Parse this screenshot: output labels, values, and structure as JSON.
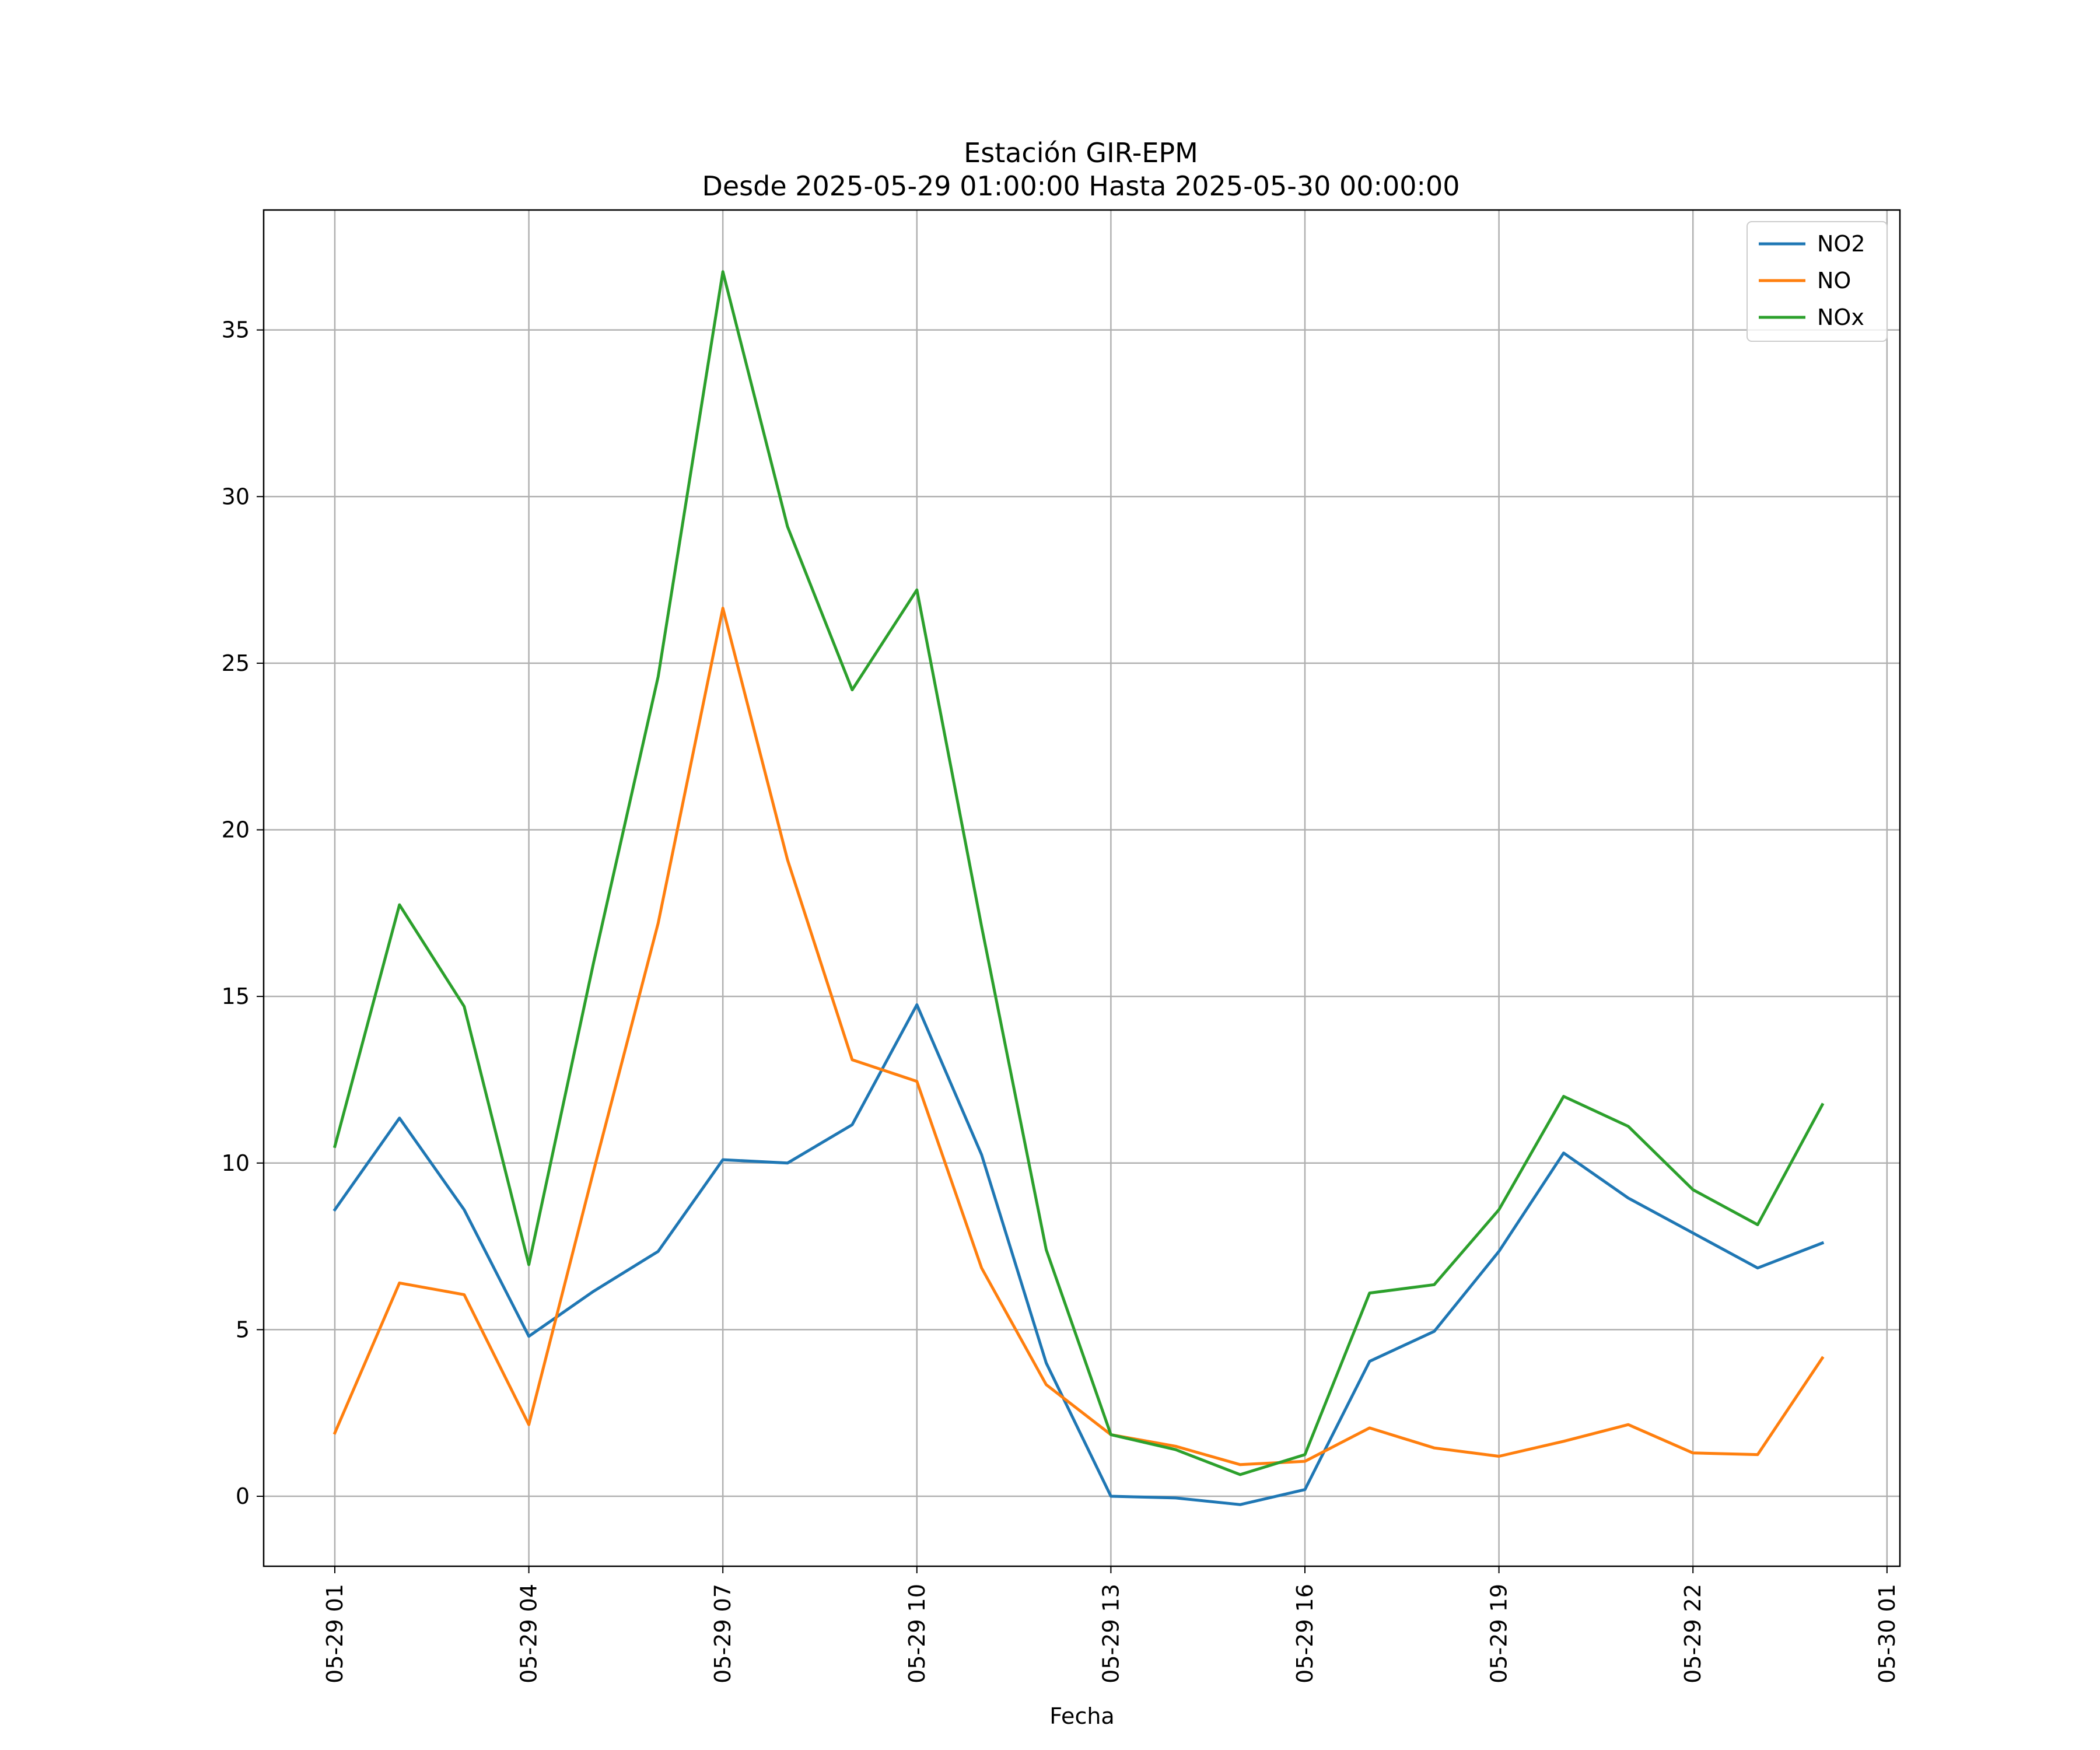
{
  "chart_data": {
    "type": "line",
    "title_line1": "Estación GIR-EPM",
    "title_line2": "Desde 2025-05-29 01:00:00 Hasta 2025-05-30 00:00:00",
    "xlabel": "Fecha",
    "ylabel": "",
    "grid": true,
    "legend_position": "top-right",
    "x": [
      "05-29 01",
      "05-29 02",
      "05-29 03",
      "05-29 04",
      "05-29 05",
      "05-29 06",
      "05-29 07",
      "05-29 08",
      "05-29 09",
      "05-29 10",
      "05-29 11",
      "05-29 12",
      "05-29 13",
      "05-29 14",
      "05-29 15",
      "05-29 16",
      "05-29 17",
      "05-29 18",
      "05-29 19",
      "05-29 20",
      "05-29 21",
      "05-29 22",
      "05-29 23",
      "05-30 00"
    ],
    "x_ticks": [
      "05-29 01",
      "05-29 04",
      "05-29 07",
      "05-29 10",
      "05-29 13",
      "05-29 16",
      "05-29 19",
      "05-29 22",
      "05-30 01"
    ],
    "x_range_hours": [
      -1.1,
      24.2
    ],
    "y_ticks": [
      0,
      5,
      10,
      15,
      20,
      25,
      30,
      35
    ],
    "ylim": [
      -2.1,
      38.6
    ],
    "series": [
      {
        "name": "NO2",
        "color": "#1f77b4",
        "values": [
          8.6,
          11.35,
          8.6,
          4.8,
          6.15,
          7.35,
          10.1,
          10.0,
          11.15,
          14.75,
          10.25,
          4.0,
          0.0,
          -0.05,
          -0.25,
          0.2,
          4.05,
          4.95,
          7.35,
          10.3,
          8.95,
          7.9,
          6.85,
          7.6
        ]
      },
      {
        "name": "NO",
        "color": "#ff7f0e",
        "values": [
          1.9,
          6.4,
          6.05,
          2.15,
          9.75,
          17.2,
          26.65,
          19.1,
          13.1,
          12.45,
          6.85,
          3.35,
          1.85,
          1.5,
          0.95,
          1.05,
          2.05,
          1.45,
          1.2,
          1.65,
          2.15,
          1.3,
          1.25,
          4.15
        ]
      },
      {
        "name": "NOx",
        "color": "#2ca02c",
        "values": [
          10.5,
          17.75,
          14.7,
          6.95,
          16.0,
          24.6,
          36.75,
          29.1,
          24.2,
          27.2,
          17.1,
          7.4,
          1.85,
          1.4,
          0.65,
          1.25,
          6.1,
          6.35,
          8.6,
          12.0,
          11.1,
          9.2,
          8.15,
          11.75
        ]
      }
    ]
  }
}
